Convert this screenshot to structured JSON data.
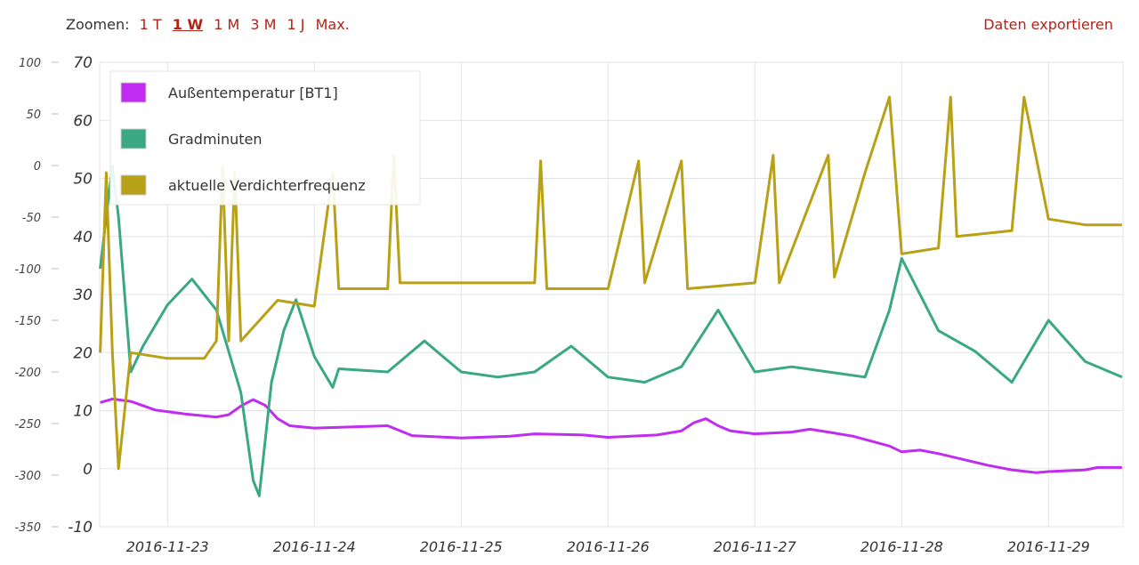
{
  "toolbar": {
    "zoom_label": "Zoomen:",
    "zoom_options": [
      "1 T",
      "1 W",
      "1 M",
      "3 M",
      "1 J",
      "Max."
    ],
    "active_zoom": "1 W",
    "export_label": "Daten exportieren"
  },
  "colors": {
    "link": "#b02418",
    "grid": "#e3e3e3"
  },
  "chart_data": {
    "type": "line",
    "x_tick_labels": [
      "2016-11-23",
      "2016-11-24",
      "2016-11-25",
      "2016-11-26",
      "2016-11-27",
      "2016-11-28",
      "2016-11-29"
    ],
    "xlim": [
      "2016-11-22T12:55",
      "2016-11-29T12:10"
    ],
    "y_left": {
      "ticks": [
        -350,
        -300,
        -250,
        -200,
        -150,
        -100,
        -50,
        0,
        50,
        100
      ],
      "ylim": [
        -350,
        100
      ]
    },
    "y_right": {
      "ticks": [
        -10,
        0,
        10,
        20,
        30,
        40,
        50,
        60,
        70
      ],
      "ylim": [
        -10,
        70
      ]
    },
    "grid": true,
    "legend_position": "top-left",
    "series": [
      {
        "name": "Außentemperatur [BT1]",
        "axis": "right",
        "color": "#c02cf0",
        "points": [
          [
            "2016-11-22T13:00",
            11.4
          ],
          [
            "2016-11-22T15:00",
            12.0
          ],
          [
            "2016-11-22T18:00",
            11.6
          ],
          [
            "2016-11-22T22:00",
            10.1
          ],
          [
            "2016-11-23T03:00",
            9.4
          ],
          [
            "2016-11-23T08:00",
            8.9
          ],
          [
            "2016-11-23T10:00",
            9.3
          ],
          [
            "2016-11-23T12:00",
            10.8
          ],
          [
            "2016-11-23T14:00",
            11.9
          ],
          [
            "2016-11-23T16:00",
            10.9
          ],
          [
            "2016-11-23T18:00",
            8.6
          ],
          [
            "2016-11-23T20:00",
            7.4
          ],
          [
            "2016-11-24T00:00",
            7.0
          ],
          [
            "2016-11-24T12:00",
            7.4
          ],
          [
            "2016-11-24T16:00",
            5.7
          ],
          [
            "2016-11-25T00:00",
            5.3
          ],
          [
            "2016-11-25T08:00",
            5.6
          ],
          [
            "2016-11-25T12:00",
            6.0
          ],
          [
            "2016-11-25T20:00",
            5.8
          ],
          [
            "2016-11-26T00:00",
            5.4
          ],
          [
            "2016-11-26T08:00",
            5.8
          ],
          [
            "2016-11-26T12:00",
            6.5
          ],
          [
            "2016-11-26T14:00",
            7.9
          ],
          [
            "2016-11-26T16:00",
            8.6
          ],
          [
            "2016-11-26T18:00",
            7.4
          ],
          [
            "2016-11-26T20:00",
            6.5
          ],
          [
            "2016-11-27T00:00",
            6.0
          ],
          [
            "2016-11-27T06:00",
            6.3
          ],
          [
            "2016-11-27T09:00",
            6.8
          ],
          [
            "2016-11-27T12:00",
            6.3
          ],
          [
            "2016-11-27T16:00",
            5.6
          ],
          [
            "2016-11-27T22:00",
            3.9
          ],
          [
            "2016-11-28T00:00",
            2.9
          ],
          [
            "2016-11-28T03:00",
            3.2
          ],
          [
            "2016-11-28T06:00",
            2.6
          ],
          [
            "2016-11-28T10:00",
            1.6
          ],
          [
            "2016-11-28T14:00",
            0.6
          ],
          [
            "2016-11-28T18:00",
            -0.2
          ],
          [
            "2016-11-28T22:00",
            -0.7
          ],
          [
            "2016-11-29T00:00",
            -0.5
          ],
          [
            "2016-11-29T06:00",
            -0.2
          ],
          [
            "2016-11-29T08:00",
            0.2
          ],
          [
            "2016-11-29T12:00",
            0.2
          ]
        ]
      },
      {
        "name": "Gradminuten",
        "axis": "left",
        "color": "#3aa882",
        "points": [
          [
            "2016-11-22T13:00",
            -100
          ],
          [
            "2016-11-22T14:00",
            -50
          ],
          [
            "2016-11-22T15:00",
            0
          ],
          [
            "2016-11-22T16:00",
            -50
          ],
          [
            "2016-11-22T18:00",
            -200
          ],
          [
            "2016-11-22T20:00",
            -175
          ],
          [
            "2016-11-23T00:00",
            -135
          ],
          [
            "2016-11-23T04:00",
            -110
          ],
          [
            "2016-11-23T08:00",
            -140
          ],
          [
            "2016-11-23T12:00",
            -220
          ],
          [
            "2016-11-23T14:00",
            -305
          ],
          [
            "2016-11-23T15:00",
            -320
          ],
          [
            "2016-11-23T17:00",
            -210
          ],
          [
            "2016-11-23T19:00",
            -160
          ],
          [
            "2016-11-23T21:00",
            -130
          ],
          [
            "2016-11-24T00:00",
            -185
          ],
          [
            "2016-11-24T03:00",
            -215
          ],
          [
            "2016-11-24T04:00",
            -197
          ],
          [
            "2016-11-24T12:00",
            -200
          ],
          [
            "2016-11-24T18:00",
            -170
          ],
          [
            "2016-11-25T00:00",
            -200
          ],
          [
            "2016-11-25T06:00",
            -205
          ],
          [
            "2016-11-25T12:00",
            -200
          ],
          [
            "2016-11-25T18:00",
            -175
          ],
          [
            "2016-11-26T00:00",
            -205
          ],
          [
            "2016-11-26T06:00",
            -210
          ],
          [
            "2016-11-26T12:00",
            -195
          ],
          [
            "2016-11-26T18:00",
            -140
          ],
          [
            "2016-11-27T00:00",
            -200
          ],
          [
            "2016-11-27T06:00",
            -195
          ],
          [
            "2016-11-27T12:00",
            -200
          ],
          [
            "2016-11-27T18:00",
            -205
          ],
          [
            "2016-11-27T22:00",
            -140
          ],
          [
            "2016-11-28T00:00",
            -90
          ],
          [
            "2016-11-28T06:00",
            -160
          ],
          [
            "2016-11-28T12:00",
            -180
          ],
          [
            "2016-11-28T18:00",
            -210
          ],
          [
            "2016-11-29T00:00",
            -150
          ],
          [
            "2016-11-29T06:00",
            -190
          ],
          [
            "2016-11-29T12:00",
            -205
          ]
        ]
      },
      {
        "name": "aktuelle Verdichterfrequenz",
        "axis": "right",
        "color": "#b8a017",
        "points": [
          [
            "2016-11-22T13:00",
            20
          ],
          [
            "2016-11-22T14:00",
            51
          ],
          [
            "2016-11-22T15:00",
            20
          ],
          [
            "2016-11-22T16:00",
            0
          ],
          [
            "2016-11-22T18:00",
            20
          ],
          [
            "2016-11-23T00:00",
            19
          ],
          [
            "2016-11-23T06:00",
            19
          ],
          [
            "2016-11-23T08:00",
            22
          ],
          [
            "2016-11-23T09:00",
            52
          ],
          [
            "2016-11-23T10:00",
            22
          ],
          [
            "2016-11-23T11:00",
            51
          ],
          [
            "2016-11-23T12:00",
            22
          ],
          [
            "2016-11-23T18:00",
            29
          ],
          [
            "2016-11-24T00:00",
            28
          ],
          [
            "2016-11-24T03:00",
            51
          ],
          [
            "2016-11-24T04:00",
            31
          ],
          [
            "2016-11-24T12:00",
            31
          ],
          [
            "2016-11-24T13:00",
            54
          ],
          [
            "2016-11-24T14:00",
            32
          ],
          [
            "2016-11-25T00:00",
            32
          ],
          [
            "2016-11-25T12:00",
            32
          ],
          [
            "2016-11-25T13:00",
            53
          ],
          [
            "2016-11-25T14:00",
            31
          ],
          [
            "2016-11-26T00:00",
            31
          ],
          [
            "2016-11-26T05:00",
            53
          ],
          [
            "2016-11-26T06:00",
            32
          ],
          [
            "2016-11-26T12:00",
            53
          ],
          [
            "2016-11-26T13:00",
            31
          ],
          [
            "2016-11-27T00:00",
            32
          ],
          [
            "2016-11-27T03:00",
            54
          ],
          [
            "2016-11-27T04:00",
            32
          ],
          [
            "2016-11-27T12:00",
            54
          ],
          [
            "2016-11-27T13:00",
            33
          ],
          [
            "2016-11-27T18:00",
            51
          ],
          [
            "2016-11-27T22:00",
            64
          ],
          [
            "2016-11-28T00:00",
            37
          ],
          [
            "2016-11-28T06:00",
            38
          ],
          [
            "2016-11-28T08:00",
            64
          ],
          [
            "2016-11-28T09:00",
            40
          ],
          [
            "2016-11-28T18:00",
            41
          ],
          [
            "2016-11-28T20:00",
            64
          ],
          [
            "2016-11-29T00:00",
            43
          ],
          [
            "2016-11-29T06:00",
            42
          ],
          [
            "2016-11-29T12:00",
            42
          ]
        ]
      }
    ]
  }
}
